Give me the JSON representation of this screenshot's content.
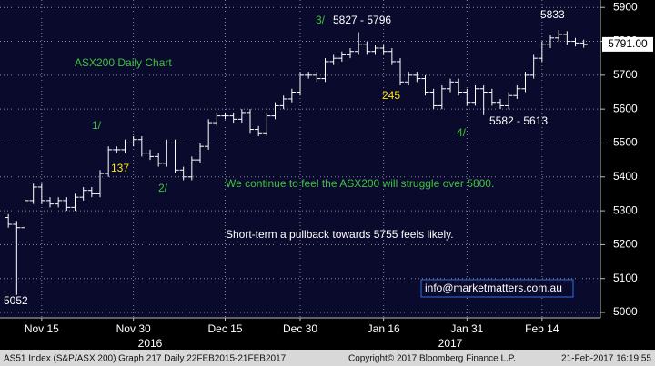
{
  "chart_data": {
    "type": "ohlc",
    "title": "ASX200 Daily Chart",
    "x": [
      0,
      1,
      2,
      3,
      4,
      5,
      6,
      7,
      8,
      9,
      10,
      11,
      12,
      13,
      14,
      15,
      16,
      17,
      18,
      19,
      20,
      21,
      22,
      23,
      24,
      25,
      26,
      27,
      28,
      29,
      30,
      31,
      32,
      33,
      34,
      35,
      36,
      37,
      38,
      39,
      40,
      41,
      42,
      43,
      44,
      45,
      46,
      47,
      48,
      49,
      50,
      51,
      52,
      53,
      54,
      55,
      56,
      57,
      58,
      59,
      60,
      61,
      62,
      63,
      64,
      65,
      66,
      67,
      68,
      69
    ],
    "open": [
      5280,
      5260,
      5250,
      5330,
      5370,
      5330,
      5320,
      5330,
      5310,
      5340,
      5360,
      5350,
      5410,
      5480,
      5480,
      5500,
      5510,
      5470,
      5460,
      5440,
      5500,
      5420,
      5400,
      5450,
      5490,
      5560,
      5580,
      5580,
      5570,
      5590,
      5540,
      5530,
      5580,
      5610,
      5630,
      5650,
      5700,
      5700,
      5690,
      5740,
      5750,
      5760,
      5770,
      5790,
      5770,
      5780,
      5770,
      5740,
      5680,
      5700,
      5690,
      5650,
      5610,
      5660,
      5680,
      5650,
      5620,
      5660,
      5650,
      5620,
      5610,
      5640,
      5660,
      5700,
      5750,
      5790,
      5810,
      5820,
      5800,
      5795
    ],
    "high": [
      5290,
      5270,
      5340,
      5380,
      5380,
      5340,
      5340,
      5340,
      5350,
      5370,
      5370,
      5420,
      5490,
      5490,
      5510,
      5520,
      5520,
      5480,
      5470,
      5510,
      5510,
      5430,
      5460,
      5500,
      5570,
      5590,
      5590,
      5590,
      5600,
      5600,
      5550,
      5590,
      5620,
      5640,
      5660,
      5710,
      5710,
      5710,
      5750,
      5760,
      5770,
      5780,
      5827,
      5800,
      5790,
      5790,
      5780,
      5750,
      5710,
      5710,
      5700,
      5660,
      5670,
      5690,
      5690,
      5660,
      5670,
      5670,
      5660,
      5630,
      5650,
      5670,
      5710,
      5760,
      5800,
      5820,
      5833,
      5830,
      5810,
      5805
    ],
    "low": [
      5250,
      5052,
      5240,
      5320,
      5320,
      5310,
      5310,
      5300,
      5300,
      5330,
      5340,
      5340,
      5400,
      5470,
      5470,
      5490,
      5460,
      5450,
      5430,
      5430,
      5410,
      5390,
      5390,
      5440,
      5480,
      5550,
      5570,
      5560,
      5560,
      5530,
      5520,
      5520,
      5570,
      5600,
      5620,
      5640,
      5690,
      5680,
      5680,
      5730,
      5740,
      5750,
      5760,
      5760,
      5760,
      5760,
      5730,
      5670,
      5670,
      5680,
      5640,
      5600,
      5600,
      5650,
      5640,
      5610,
      5610,
      5582,
      5610,
      5600,
      5600,
      5630,
      5650,
      5690,
      5740,
      5780,
      5800,
      5790,
      5785,
      5781
    ],
    "close": [
      5260,
      5250,
      5330,
      5370,
      5330,
      5320,
      5330,
      5310,
      5340,
      5360,
      5350,
      5410,
      5480,
      5480,
      5500,
      5510,
      5470,
      5460,
      5440,
      5500,
      5420,
      5400,
      5450,
      5490,
      5560,
      5580,
      5580,
      5570,
      5590,
      5540,
      5530,
      5580,
      5610,
      5630,
      5650,
      5700,
      5700,
      5690,
      5740,
      5750,
      5760,
      5770,
      5790,
      5770,
      5780,
      5770,
      5740,
      5680,
      5700,
      5690,
      5650,
      5610,
      5660,
      5680,
      5650,
      5620,
      5660,
      5650,
      5620,
      5610,
      5640,
      5660,
      5700,
      5750,
      5790,
      5810,
      5820,
      5800,
      5795,
      5791
    ],
    "color": "#ffffff",
    "xlim": [
      -1,
      71
    ],
    "xticks": [
      {
        "value": 4,
        "label": "Nov 15"
      },
      {
        "value": 15,
        "label": "Nov 30"
      },
      {
        "value": 26,
        "label": "Dec 15"
      },
      {
        "value": 35,
        "label": "Dec 30"
      },
      {
        "value": 45,
        "label": "Jan 16"
      },
      {
        "value": 55,
        "label": "Jan 31"
      },
      {
        "value": 64,
        "label": "Feb 14"
      }
    ],
    "year_ticks": [
      {
        "value": 17,
        "label": "2016"
      },
      {
        "value": 53,
        "label": "2017"
      }
    ],
    "ylim": [
      4984,
      5922
    ],
    "yticks": [
      5000,
      5100,
      5200,
      5300,
      5400,
      5500,
      5600,
      5700,
      5800,
      5900
    ],
    "grid": true,
    "last_price_label": "5791.00",
    "annotations": [
      "5052",
      "1/",
      "137",
      "2/",
      "3/",
      "5827 - 5796",
      "245",
      "4/",
      "5582 - 5613",
      "5833",
      "We continue to feel the ASX200 will struggle over 5800.",
      "Short-term a pullback towards 5755 feels likely.",
      "info@marketmatters.com.au"
    ],
    "footer": [
      "AS51 Index (S&P/ASX 200) Graph 217  Daily 22FEB2015-21FEB2017",
      "Copyright© 2017 Bloomberg Finance L.P.",
      "21-Feb-2017 16:19:55"
    ]
  }
}
